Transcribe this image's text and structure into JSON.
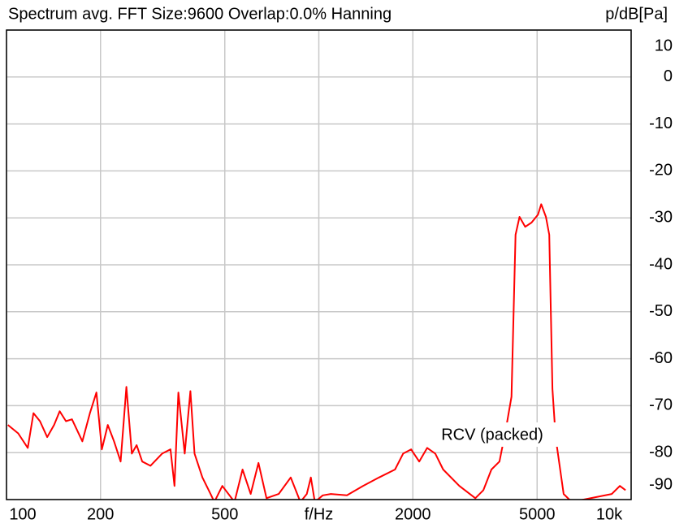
{
  "chart_data": {
    "type": "line",
    "title": "Spectrum avg.  FFT Size:9600  Overlap:0.0%  Hanning",
    "y_label": "p/dB[Pa]",
    "annotation": "RCV (packed)",
    "log_x": true,
    "grid": true,
    "xlim": [
      100,
      10000
    ],
    "ylim": [
      -90,
      10
    ],
    "xticks": [
      100,
      200,
      500,
      {
        "value": 1000,
        "label": "f/Hz"
      },
      2000,
      5000,
      {
        "value": 10000,
        "label": "10k"
      }
    ],
    "yticks": [
      10,
      0,
      -10,
      -20,
      -30,
      -40,
      -50,
      -60,
      -70,
      -80,
      -90
    ],
    "x": [
      101,
      109,
      117,
      122,
      128,
      135,
      142,
      148,
      155,
      162,
      175,
      185,
      194,
      202,
      211,
      221,
      232,
      242,
      252,
      261,
      272,
      289,
      315,
      335,
      345,
      355,
      372,
      388,
      400,
      424,
      450,
      463,
      491,
      537,
      570,
      605,
      641,
      680,
      744,
      813,
      873,
      915,
      943,
      971,
      1030,
      1093,
      1230,
      1385,
      1559,
      1754,
      1862,
      1975,
      2096,
      2223,
      2360,
      2502,
      2818,
      3170,
      3365,
      3570,
      3787,
      3972,
      4140,
      4266,
      4393,
      4579,
      4800,
      5032,
      5152,
      5336,
      5468,
      5598,
      5730,
      6081,
      6454,
      8674,
      9204,
      9594
    ],
    "series": [
      {
        "name": "RCV",
        "color": "#ff0000",
        "values": [
          -74.1,
          -75.9,
          -79,
          -71.6,
          -73.3,
          -76.7,
          -74.1,
          -71.2,
          -73.3,
          -72.9,
          -77.6,
          -71.6,
          -67.2,
          -79.3,
          -74.1,
          -77.6,
          -81.9,
          -66,
          -80.2,
          -78.4,
          -81.9,
          -82.8,
          -80.2,
          -79.3,
          -87.1,
          -67.2,
          -80.2,
          -66.9,
          -80.2,
          -85.3,
          -88.8,
          -90.5,
          -87.1,
          -90.5,
          -83.6,
          -88.8,
          -82.2,
          -89.7,
          -88.8,
          -85.3,
          -90.5,
          -88.8,
          -85.3,
          -90.5,
          -89.1,
          -88.8,
          -89.1,
          -87.1,
          -85.3,
          -83.6,
          -80.2,
          -79.3,
          -81.9,
          -79,
          -80.2,
          -83.6,
          -87.1,
          -89.7,
          -88,
          -83.6,
          -81.9,
          -75,
          -68.1,
          -33.6,
          -29.8,
          -31.9,
          -31,
          -29.3,
          -27.1,
          -29.8,
          -33.6,
          -66.4,
          -76.7,
          -88.8,
          -90.5,
          -88.8,
          -87.1,
          -88
        ]
      }
    ]
  }
}
